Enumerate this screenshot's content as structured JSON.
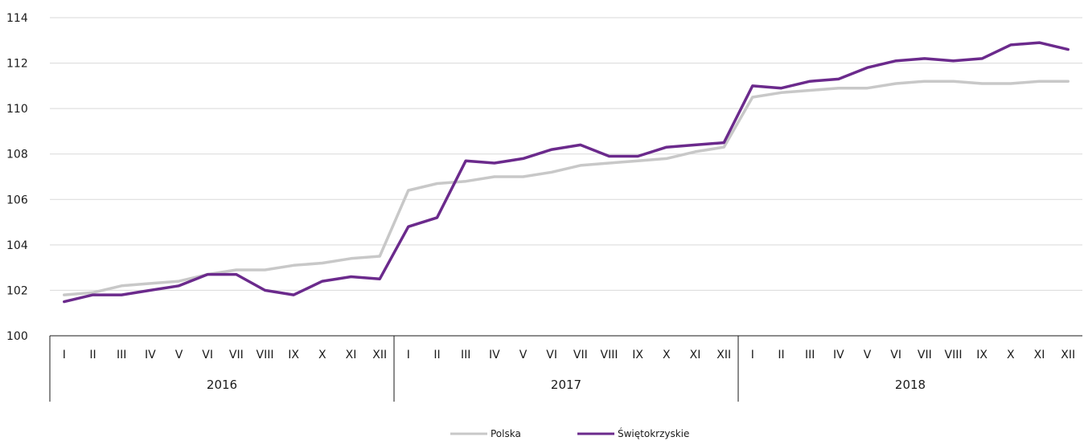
{
  "chart_data": {
    "type": "line",
    "ylim": [
      100,
      114
    ],
    "yticks": [
      100,
      102,
      104,
      106,
      108,
      110,
      112,
      114
    ],
    "ytick_labels": [
      "100",
      "102",
      "104",
      "106",
      "108",
      "110",
      "112",
      "114"
    ],
    "grid": true,
    "legend_position": "bottom-center",
    "groups": [
      {
        "label": "2016",
        "months": [
          "I",
          "II",
          "III",
          "IV",
          "V",
          "VI",
          "VII",
          "VIII",
          "IX",
          "X",
          "XI",
          "XII"
        ]
      },
      {
        "label": "2017",
        "months": [
          "I",
          "II",
          "III",
          "IV",
          "V",
          "VI",
          "VII",
          "VIII",
          "IX",
          "X",
          "XI",
          "XII"
        ]
      },
      {
        "label": "2018",
        "months": [
          "I",
          "II",
          "III",
          "IV",
          "V",
          "VI",
          "VII",
          "VIII",
          "IX",
          "X",
          "XI",
          "XII"
        ]
      }
    ],
    "series": [
      {
        "name": "Polska",
        "color": "#c8c8c8",
        "values": [
          101.8,
          101.9,
          102.2,
          102.3,
          102.4,
          102.7,
          102.9,
          102.9,
          103.1,
          103.2,
          103.4,
          103.5,
          106.4,
          106.7,
          106.8,
          107.0,
          107.0,
          107.2,
          107.5,
          107.6,
          107.7,
          107.8,
          108.1,
          108.3,
          110.5,
          110.7,
          110.8,
          110.9,
          110.9,
          111.1,
          111.2,
          111.2,
          111.1,
          111.1,
          111.2,
          111.2
        ]
      },
      {
        "name": "Świętokrzyskie",
        "color": "#6b2a8c",
        "values": [
          101.5,
          101.8,
          101.8,
          102.0,
          102.2,
          102.7,
          102.7,
          102.0,
          101.8,
          102.4,
          102.6,
          102.5,
          104.8,
          105.2,
          107.7,
          107.6,
          107.8,
          108.2,
          108.4,
          107.9,
          107.9,
          108.3,
          108.4,
          108.5,
          111.0,
          110.9,
          111.2,
          111.3,
          111.8,
          112.1,
          112.2,
          112.1,
          112.2,
          112.8,
          112.9,
          112.6
        ]
      }
    ]
  }
}
